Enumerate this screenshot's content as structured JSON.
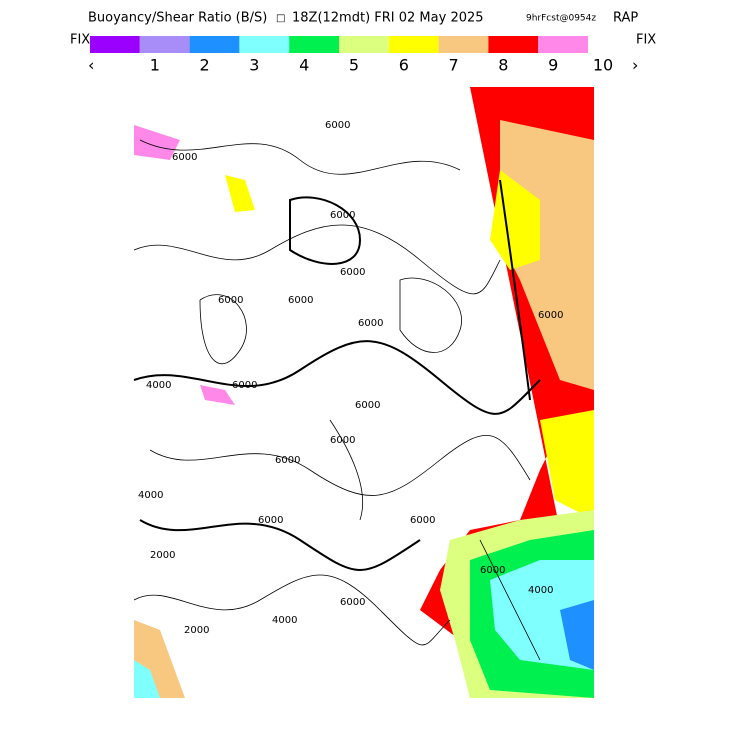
{
  "header": {
    "title": "Buoyancy/Shear Ratio (B/S)",
    "symbol": "□",
    "run": "18Z(12mdt) FRI 02 May 2025",
    "forecast": "9hrFcst@0954z",
    "model": "RAP"
  },
  "colorbar": {
    "left_label": "FIX",
    "right_label": "FIX",
    "prev": "‹",
    "next": "›",
    "labels": [
      1,
      2,
      3,
      4,
      5,
      6,
      7,
      8,
      9,
      10
    ],
    "colors": [
      "#9b00ff",
      "#a88cf8",
      "#1e90ff",
      "#80ffff",
      "#00f050",
      "#dcff80",
      "#ffff00",
      "#f8c880",
      "#ff0000",
      "#ff88e8"
    ]
  },
  "contour_labels": [
    "6000",
    "6000",
    "6000",
    "6000",
    "6000",
    "6000",
    "6000",
    "4000",
    "6000",
    "6000",
    "6000",
    "4000",
    "6000",
    "6000",
    "2000",
    "6000",
    "2000",
    "4000",
    "6000",
    "6000",
    "4000",
    "6000"
  ]
}
